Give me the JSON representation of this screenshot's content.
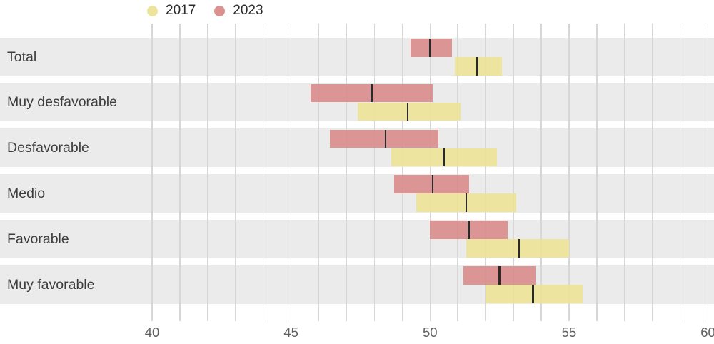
{
  "legend": {
    "items": [
      {
        "label": "2017",
        "color": "#ece293"
      },
      {
        "label": "2023",
        "color": "#d98888"
      }
    ]
  },
  "colors": {
    "series_2017": "#ece293",
    "series_2023": "#d98888",
    "category_band": "#ebebeb",
    "gridline": "#d7d7d7",
    "median_line": "#2a2a2a"
  },
  "chart_data": {
    "type": "bar",
    "subtype": "horizontal-interval-range",
    "title": "",
    "xlabel": "",
    "ylabel": "",
    "categories": [
      "Total",
      "Muy desfavorable",
      "Desfavorable",
      "Medio",
      "Favorable",
      "Muy favorable"
    ],
    "series": [
      {
        "name": "2017",
        "color": "#ece293",
        "values": [
          {
            "low": 50.9,
            "mid": 51.7,
            "high": 52.6
          },
          {
            "low": 47.4,
            "mid": 49.2,
            "high": 51.1
          },
          {
            "low": 48.6,
            "mid": 50.5,
            "high": 52.4
          },
          {
            "low": 49.5,
            "mid": 51.3,
            "high": 53.1
          },
          {
            "low": 51.3,
            "mid": 53.2,
            "high": 55.0
          },
          {
            "low": 52.0,
            "mid": 53.7,
            "high": 55.5
          }
        ]
      },
      {
        "name": "2023",
        "color": "#d98888",
        "values": [
          {
            "low": 49.3,
            "mid": 50.0,
            "high": 50.8
          },
          {
            "low": 45.7,
            "mid": 47.9,
            "high": 50.1
          },
          {
            "low": 46.4,
            "mid": 48.4,
            "high": 50.3
          },
          {
            "low": 48.7,
            "mid": 50.1,
            "high": 51.4
          },
          {
            "low": 50.0,
            "mid": 51.4,
            "high": 52.8
          },
          {
            "low": 51.2,
            "mid": 52.5,
            "high": 53.8
          }
        ]
      }
    ],
    "xlim": [
      40,
      60
    ],
    "x_major_ticks": [
      40,
      45,
      50,
      55,
      60
    ],
    "x_minor_step": 1,
    "grid": true,
    "legend_position": "top",
    "bar_order_in_band": [
      "2023",
      "2017"
    ]
  }
}
